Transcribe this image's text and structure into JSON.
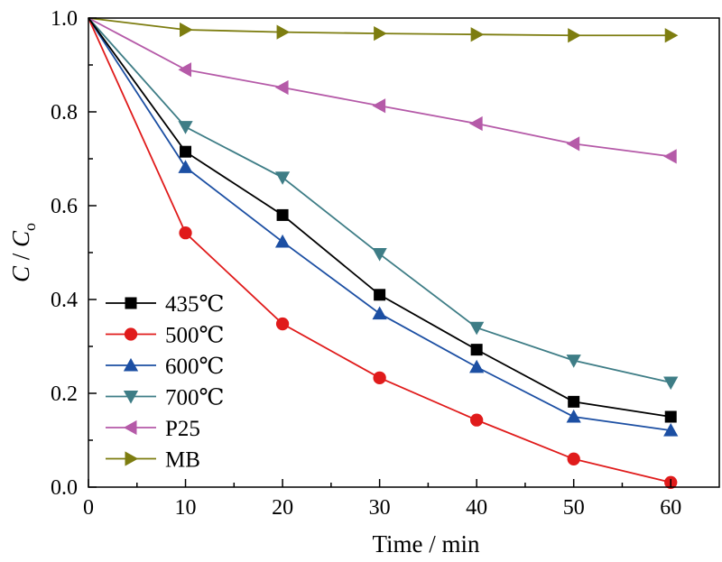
{
  "chart_data": {
    "type": "line",
    "xlabel": "Time / min",
    "ylabel": {
      "c": "C",
      "sep": " / ",
      "c0": "C",
      "sub": "o"
    },
    "xlim": [
      0,
      65
    ],
    "ylim": [
      0,
      1.0
    ],
    "xticks": [
      "0",
      "10",
      "20",
      "30",
      "40",
      "50",
      "60"
    ],
    "yticks": [
      "0.0",
      "0.2",
      "0.4",
      "0.6",
      "0.8",
      "1.0"
    ],
    "grid": false,
    "legend_position": "bottom-left",
    "x": [
      0,
      10,
      20,
      30,
      40,
      50,
      60
    ],
    "series": [
      {
        "name": "435℃",
        "color": "#000000",
        "marker": "square",
        "values": [
          1.0,
          0.715,
          0.58,
          0.41,
          0.293,
          0.182,
          0.15
        ]
      },
      {
        "name": "500℃",
        "color": "#e01b1b",
        "marker": "circle",
        "values": [
          1.0,
          0.542,
          0.348,
          0.233,
          0.143,
          0.06,
          0.01
        ]
      },
      {
        "name": "600℃",
        "color": "#1c4fa3",
        "marker": "triangle-up",
        "values": [
          1.0,
          0.682,
          0.523,
          0.37,
          0.256,
          0.15,
          0.121
        ]
      },
      {
        "name": "700℃",
        "color": "#3e7d86",
        "marker": "triangle-down",
        "values": [
          1.0,
          0.768,
          0.66,
          0.497,
          0.34,
          0.27,
          0.223
        ]
      },
      {
        "name": "P25",
        "color": "#b55aa8",
        "marker": "triangle-left",
        "values": [
          1.0,
          0.89,
          0.852,
          0.813,
          0.775,
          0.732,
          0.705
        ]
      },
      {
        "name": "MB",
        "color": "#7d7d10",
        "marker": "triangle-right",
        "values": [
          1.0,
          0.975,
          0.97,
          0.967,
          0.965,
          0.963,
          0.963
        ]
      }
    ]
  }
}
